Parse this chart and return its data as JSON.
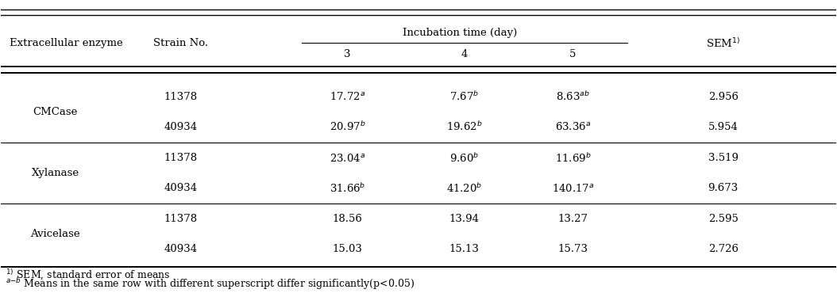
{
  "rows": [
    [
      "CMCase",
      "11378",
      "17.72a",
      "7.67b",
      "8.63ab",
      "2.956"
    ],
    [
      "CMCase",
      "40934",
      "20.97b",
      "19.62b",
      "63.36a",
      "5.954"
    ],
    [
      "Xylanase",
      "11378",
      "23.04a",
      "9.60b",
      "11.69b",
      "3.519"
    ],
    [
      "Xylanase",
      "40934",
      "31.66b",
      "41.20b",
      "140.17a",
      "9.673"
    ],
    [
      "Avicelase",
      "11378",
      "18.56",
      "13.94",
      "13.27",
      "2.595"
    ],
    [
      "Avicelase",
      "40934",
      "15.03",
      "15.13",
      "15.73",
      "2.726"
    ]
  ],
  "background_color": "#ffffff",
  "font_size": 9.5
}
